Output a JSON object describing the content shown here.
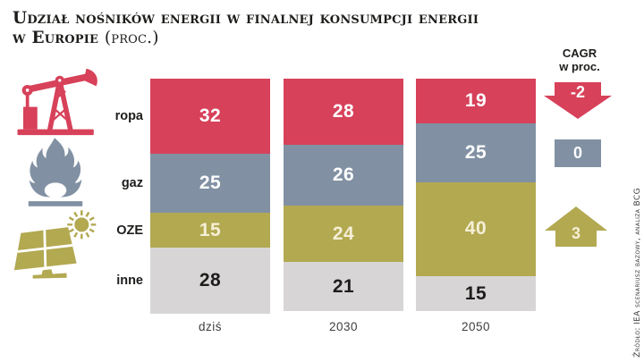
{
  "title": {
    "line1": "Udział nośników energii w finalnej konsumpcji energii",
    "line2": "w Europie",
    "suffix": "(proc.)"
  },
  "colors": {
    "red": "#d7415a",
    "blue_gray": "#8191a3",
    "olive": "#b2a951",
    "light_gray": "#d8d5d6",
    "ink": "#1d1d1b"
  },
  "icons": [
    {
      "name": "oil-pumpjack-icon",
      "represents": "ropa"
    },
    {
      "name": "flame-icon",
      "represents": "gaz"
    },
    {
      "name": "solar-panel-icon",
      "represents": "OZE"
    }
  ],
  "legend": {
    "title_line1": "CAGR",
    "title_line2": "w proc.",
    "items": [
      {
        "value": "-2",
        "direction": "down",
        "color": "#d7415a"
      },
      {
        "value": "0",
        "direction": "flat",
        "color": "#8191a3"
      },
      {
        "value": "3",
        "direction": "up",
        "color": "#b2a951"
      }
    ]
  },
  "chart_data": {
    "type": "bar",
    "variant": "100%-stacked-vertical",
    "title": "Udział nośników energii w finalnej konsumpcji energii w Europie (proc.)",
    "unit": "proc.",
    "categories": [
      "dziś",
      "2030",
      "2050"
    ],
    "series": [
      {
        "name": "ropa",
        "color": "#d7415a",
        "label_color": "#ffffff",
        "values": [
          32,
          28,
          19
        ],
        "cagr_proc": -2
      },
      {
        "name": "gaz",
        "color": "#8191a3",
        "label_color": "#ffffff",
        "values": [
          25,
          26,
          25
        ],
        "cagr_proc": 0
      },
      {
        "name": "OZE",
        "color": "#b2a951",
        "label_color": "#f6efd7",
        "values": [
          15,
          24,
          40
        ],
        "cagr_proc": 3
      },
      {
        "name": "inne",
        "color": "#d8d5d6",
        "label_color": "#1d1d1b",
        "values": [
          28,
          21,
          15
        ]
      }
    ],
    "ylim": [
      0,
      100
    ],
    "grid": false,
    "legend_position": "right"
  },
  "source": "Źródło: IEA scenariusz bazowy, analiza BCG"
}
